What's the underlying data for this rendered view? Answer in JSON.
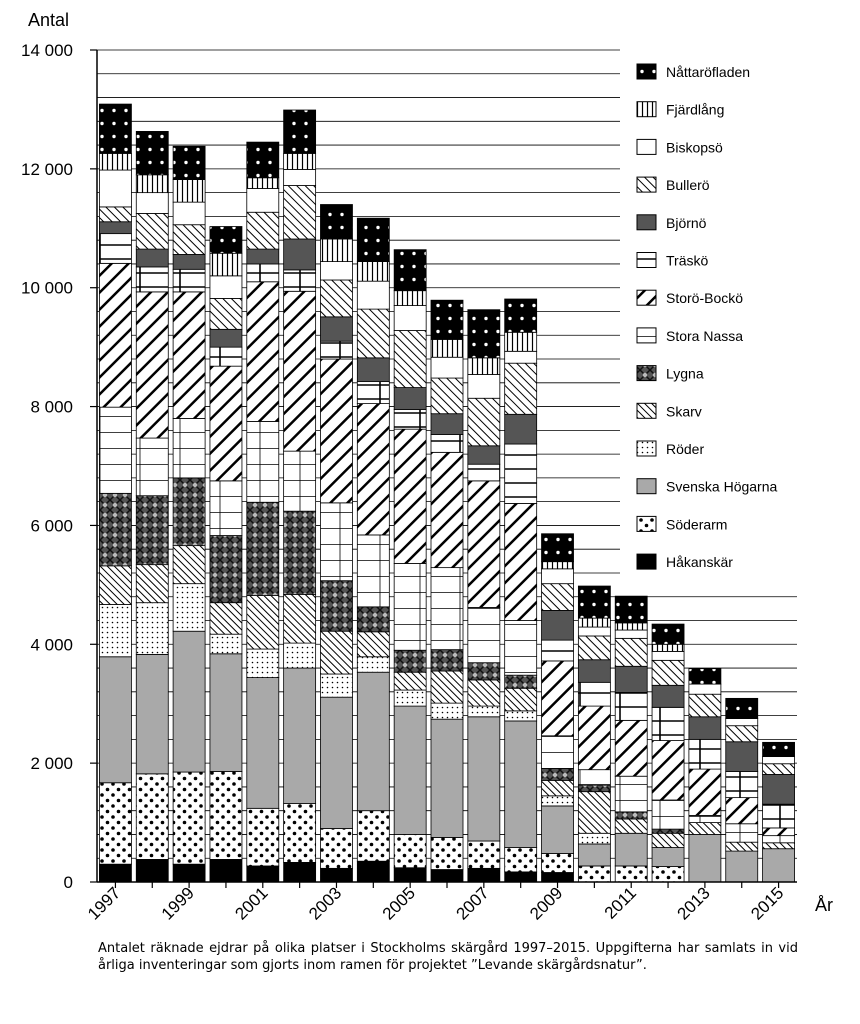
{
  "chart_data": {
    "type": "bar",
    "stacked": true,
    "ylabel": "Antal",
    "xlabel": "År",
    "ylim": [
      0,
      14000
    ],
    "yticks": [
      0,
      2000,
      4000,
      6000,
      8000,
      10000,
      12000,
      14000
    ],
    "ytick_labels": [
      "0",
      "2 000",
      "4 000",
      "6 000",
      "8 000",
      "10 000",
      "12 000",
      "14 000"
    ],
    "xtick_labels": [
      "1997",
      "1999",
      "2001",
      "2003",
      "2005",
      "2007",
      "2009",
      "2011",
      "2013",
      "2015"
    ],
    "categories": [
      "1997",
      "1998",
      "1999",
      "2000",
      "2001",
      "2002",
      "2003",
      "2004",
      "2005",
      "2006",
      "2007",
      "2008",
      "2009",
      "2010",
      "2011",
      "2012",
      "2013",
      "2014",
      "2015"
    ],
    "gridlines": "horizontal",
    "legend_position": "right",
    "series": [
      {
        "name": "Håkanskär",
        "pattern": "solid-black",
        "values": [
          300,
          380,
          300,
          380,
          270,
          330,
          230,
          350,
          240,
          210,
          230,
          170,
          160,
          0,
          0,
          0,
          0,
          0,
          0
        ]
      },
      {
        "name": "Söderarm",
        "pattern": "large-dots",
        "values": [
          1370,
          1440,
          1550,
          1480,
          970,
          990,
          670,
          850,
          560,
          540,
          460,
          410,
          320,
          270,
          270,
          260,
          0,
          0,
          0
        ]
      },
      {
        "name": "Svenska Högarna",
        "pattern": "gray",
        "values": [
          2120,
          2010,
          2370,
          1980,
          2200,
          2280,
          2210,
          2330,
          2160,
          1990,
          2090,
          2130,
          800,
          370,
          550,
          320,
          800,
          520,
          560
        ]
      },
      {
        "name": "Röder",
        "pattern": "small-dots",
        "values": [
          880,
          870,
          800,
          330,
          480,
          420,
          390,
          260,
          270,
          270,
          180,
          170,
          170,
          180,
          0,
          0,
          0,
          0,
          0
        ]
      },
      {
        "name": "Skarv",
        "pattern": "fine-diagonal",
        "values": [
          650,
          640,
          640,
          530,
          900,
          820,
          720,
          420,
          300,
          540,
          440,
          380,
          260,
          700,
          240,
          240,
          200,
          150,
          100
        ]
      },
      {
        "name": "Lygna",
        "pattern": "crosshatch-circles",
        "values": [
          1220,
          1160,
          1140,
          1130,
          1570,
          1400,
          850,
          420,
          370,
          360,
          290,
          220,
          200,
          110,
          120,
          70,
          0,
          0,
          0
        ]
      },
      {
        "name": "Stora Nassa",
        "pattern": "grid",
        "values": [
          1450,
          970,
          1000,
          920,
          1360,
          1010,
          1310,
          1210,
          1460,
          1380,
          930,
          920,
          550,
          260,
          600,
          490,
          120,
          310,
          120
        ]
      },
      {
        "name": "Storö-Bockö",
        "pattern": "bold-diagonal",
        "values": [
          2420,
          2460,
          2130,
          1930,
          2350,
          2690,
          2420,
          2210,
          2260,
          1940,
          2130,
          1970,
          1260,
          1070,
          940,
          1000,
          780,
          440,
          130
        ]
      },
      {
        "name": "Träskö",
        "pattern": "sparse-grid",
        "values": [
          500,
          420,
          380,
          320,
          300,
          360,
          300,
          370,
          330,
          300,
          280,
          1000,
          350,
          400,
          470,
          560,
          500,
          440,
          400
        ]
      },
      {
        "name": "Björnö",
        "pattern": "dark-gray",
        "values": [
          200,
          300,
          250,
          300,
          250,
          520,
          410,
          400,
          370,
          350,
          310,
          500,
          500,
          380,
          440,
          370,
          380,
          500,
          500
        ]
      },
      {
        "name": "Bullerö",
        "pattern": "hatched",
        "values": [
          250,
          600,
          500,
          520,
          620,
          900,
          620,
          820,
          960,
          600,
          800,
          860,
          450,
          400,
          470,
          420,
          380,
          270,
          180
        ]
      },
      {
        "name": "Biskopsö",
        "pattern": "white",
        "values": [
          620,
          350,
          380,
          380,
          400,
          270,
          310,
          470,
          420,
          350,
          400,
          200,
          250,
          150,
          140,
          150,
          170,
          120,
          120
        ]
      },
      {
        "name": "Fjärdlång",
        "pattern": "vertical-lines",
        "values": [
          280,
          300,
          380,
          380,
          180,
          270,
          380,
          330,
          250,
          300,
          280,
          320,
          120,
          150,
          120,
          120,
          0,
          0,
          0
        ]
      },
      {
        "name": "Nåttaröfladen",
        "pattern": "black-dots",
        "values": [
          830,
          730,
          560,
          450,
          600,
          730,
          580,
          730,
          690,
          660,
          810,
          560,
          470,
          540,
          450,
          340,
          260,
          340,
          240
        ]
      }
    ]
  },
  "caption": "Antalet räknade ejdrar på olika platser i Stockholms skärgård 1997–2015. Uppgifterna har samlats in vid årliga inventeringar som gjorts inom ramen för projektet ”Levande skärgårdsnatur”."
}
